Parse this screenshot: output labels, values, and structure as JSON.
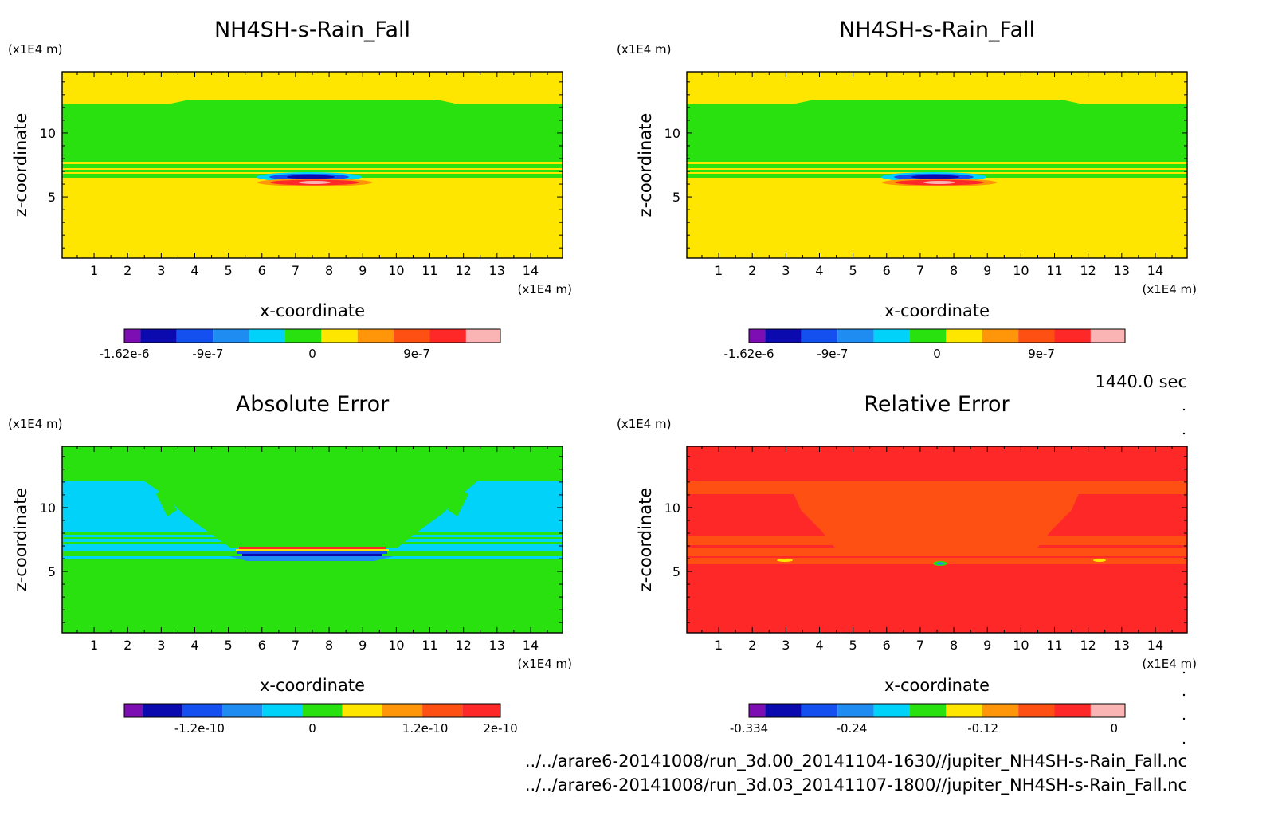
{
  "figure": {
    "timestamp": "1440.0 sec",
    "file_paths": [
      "../../arare6-20141008/run_3d.00_20141104-1630//jupiter_NH4SH-s-Rain_Fall.nc",
      "../../arare6-20141008/run_3d.03_20141107-1800//jupiter_NH4SH-s-Rain_Fall.nc"
    ]
  },
  "chart_data": [
    {
      "type": "heatmap",
      "title": "NH4SH-s-Rain_Fall",
      "xlabel": "x-coordinate",
      "ylabel": "z-coordinate",
      "x_unit": "(x1E4 m)",
      "z_unit": "(x1E4 m)",
      "xlim": [
        0.05,
        14.95
      ],
      "ylim": [
        0.2,
        14.8
      ],
      "x_ticks": [
        1,
        2,
        3,
        4,
        5,
        6,
        7,
        8,
        9,
        10,
        11,
        12,
        13,
        14
      ],
      "y_ticks": [
        5,
        10
      ],
      "colorbar": {
        "colors": [
          "#7d0eb4",
          "#0a0aaf",
          "#1450f0",
          "#1e8cf0",
          "#00d2fa",
          "#28e10f",
          "#ffe600",
          "#ff960a",
          "#ff5014",
          "#ff2828",
          "#fab4b4"
        ],
        "tick_labels": [
          "-1.62e-6",
          "-9e-7",
          "0",
          "9e-7"
        ],
        "tick_values": [
          -1.62e-06,
          -9e-07,
          0,
          9e-07
        ],
        "range": [
          -1.62e-06,
          1.62e-06
        ]
      },
      "regions": [
        {
          "level": 0,
          "desc": "background (near 0)",
          "color": "#ffe600"
        },
        {
          "level": -1,
          "desc": "cloud layer",
          "color": "#28e10f",
          "x": [
            0.05,
            14.95
          ],
          "z": [
            6.3,
            12.2
          ]
        },
        {
          "level": -9e-07,
          "desc": "negative core",
          "color": "#0a0aaf",
          "x": [
            6.6,
            8.8
          ],
          "z": [
            6.2,
            6.5
          ]
        },
        {
          "level": 9e-07,
          "desc": "positive core",
          "color": "#ff2828",
          "x": [
            6.6,
            8.8
          ],
          "z": [
            5.9,
            6.1
          ]
        }
      ]
    },
    {
      "type": "heatmap",
      "title": "NH4SH-s-Rain_Fall",
      "xlabel": "x-coordinate",
      "ylabel": "z-coordinate",
      "x_unit": "(x1E4 m)",
      "z_unit": "(x1E4 m)",
      "xlim": [
        0.05,
        14.95
      ],
      "ylim": [
        0.2,
        14.8
      ],
      "x_ticks": [
        1,
        2,
        3,
        4,
        5,
        6,
        7,
        8,
        9,
        10,
        11,
        12,
        13,
        14
      ],
      "y_ticks": [
        5,
        10
      ],
      "colorbar": {
        "colors": [
          "#7d0eb4",
          "#0a0aaf",
          "#1450f0",
          "#1e8cf0",
          "#00d2fa",
          "#28e10f",
          "#ffe600",
          "#ff960a",
          "#ff5014",
          "#ff2828",
          "#fab4b4"
        ],
        "tick_labels": [
          "-1.62e-6",
          "-9e-7",
          "0",
          "9e-7"
        ],
        "tick_values": [
          -1.62e-06,
          -9e-07,
          0,
          9e-07
        ],
        "range": [
          -1.62e-06,
          1.62e-06
        ]
      }
    },
    {
      "type": "heatmap",
      "title": "Absolute Error",
      "xlabel": "x-coordinate",
      "ylabel": "z-coordinate",
      "x_unit": "(x1E4 m)",
      "z_unit": "(x1E4 m)",
      "xlim": [
        0.05,
        14.95
      ],
      "ylim": [
        0.2,
        14.8
      ],
      "x_ticks": [
        1,
        2,
        3,
        4,
        5,
        6,
        7,
        8,
        9,
        10,
        11,
        12,
        13,
        14
      ],
      "y_ticks": [
        5,
        10
      ],
      "colorbar": {
        "colors": [
          "#7d0eb4",
          "#0a0aaf",
          "#1450f0",
          "#1e8cf0",
          "#00d2fa",
          "#28e10f",
          "#ffe600",
          "#ff960a",
          "#ff5014",
          "#ff2828"
        ],
        "tick_labels": [
          "-1.2e-10",
          "0",
          "1.2e-10",
          "2e-10"
        ],
        "tick_values": [
          -1.2e-10,
          0,
          1.2e-10,
          2e-10
        ],
        "range": [
          -2e-10,
          2e-10
        ]
      }
    },
    {
      "type": "heatmap",
      "title": "Relative Error",
      "xlabel": "x-coordinate",
      "ylabel": "z-coordinate",
      "x_unit": "(x1E4 m)",
      "z_unit": "(x1E4 m)",
      "xlim": [
        0.05,
        14.95
      ],
      "ylim": [
        0.2,
        14.8
      ],
      "x_ticks": [
        1,
        2,
        3,
        4,
        5,
        6,
        7,
        8,
        9,
        10,
        11,
        12,
        13,
        14
      ],
      "y_ticks": [
        5,
        10
      ],
      "colorbar": {
        "colors": [
          "#7d0eb4",
          "#0a0aaf",
          "#1450f0",
          "#1e8cf0",
          "#00d2fa",
          "#28e10f",
          "#ffe600",
          "#ff960a",
          "#ff5014",
          "#ff2828",
          "#fab4b4"
        ],
        "tick_labels": [
          "-0.334",
          "-0.24",
          "-0.12",
          "0"
        ],
        "tick_values": [
          -0.334,
          -0.24,
          -0.12,
          0
        ],
        "range": [
          -0.334,
          0.01
        ]
      }
    }
  ]
}
